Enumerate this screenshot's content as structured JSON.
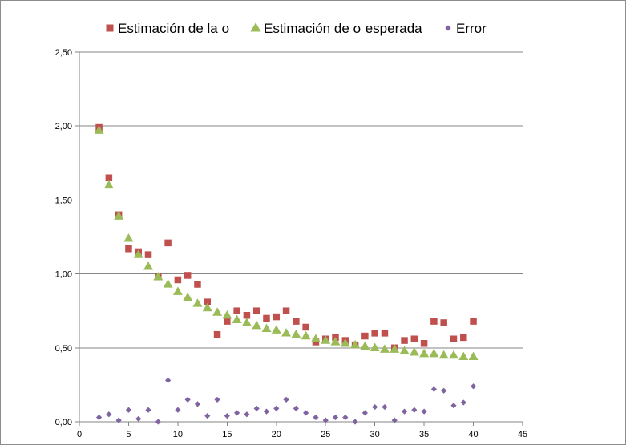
{
  "chart_data": {
    "type": "scatter",
    "title": "",
    "xlabel": "",
    "ylabel": "",
    "xlim": [
      0,
      45
    ],
    "ylim": [
      0,
      2.5
    ],
    "x_ticks": [
      0,
      5,
      10,
      15,
      20,
      25,
      30,
      35,
      40,
      45
    ],
    "y_ticks": [
      0,
      0.5,
      1.0,
      1.5,
      2.0,
      2.5
    ],
    "y_tick_labels": [
      "0,00",
      "0,50",
      "1,00",
      "1,50",
      "2,00",
      "2,50"
    ],
    "x_tick_labels": [
      "0",
      "5",
      "10",
      "15",
      "20",
      "25",
      "30",
      "35",
      "40",
      "45"
    ],
    "grid": "horizontal",
    "legend_position": "top",
    "x": [
      2,
      3,
      4,
      5,
      6,
      7,
      8,
      9,
      10,
      11,
      12,
      13,
      14,
      15,
      16,
      17,
      18,
      19,
      20,
      21,
      22,
      23,
      24,
      25,
      26,
      27,
      28,
      29,
      30,
      31,
      32,
      33,
      34,
      35,
      36,
      37,
      38,
      39,
      40
    ],
    "series": [
      {
        "name": "Estimación de la σ",
        "marker": "square",
        "color": "#c0504d",
        "values": [
          1.99,
          1.65,
          1.4,
          1.17,
          1.15,
          1.13,
          0.98,
          1.21,
          0.96,
          0.99,
          0.93,
          0.81,
          0.59,
          0.68,
          0.75,
          0.72,
          0.75,
          0.7,
          0.71,
          0.75,
          0.68,
          0.64,
          0.54,
          0.56,
          0.57,
          0.55,
          0.52,
          0.58,
          0.6,
          0.6,
          0.5,
          0.55,
          0.56,
          0.53,
          0.68,
          0.67,
          0.56,
          0.57,
          0.68
        ]
      },
      {
        "name": "Estimación de σ esperada",
        "marker": "triangle",
        "color": "#9bbb59",
        "values": [
          1.97,
          1.6,
          1.39,
          1.24,
          1.13,
          1.05,
          0.98,
          0.93,
          0.88,
          0.84,
          0.8,
          0.77,
          0.74,
          0.72,
          0.69,
          0.67,
          0.65,
          0.63,
          0.62,
          0.6,
          0.59,
          0.58,
          0.56,
          0.55,
          0.54,
          0.53,
          0.52,
          0.51,
          0.5,
          0.49,
          0.49,
          0.48,
          0.47,
          0.46,
          0.46,
          0.45,
          0.45,
          0.44,
          0.44
        ]
      },
      {
        "name": "Error",
        "marker": "diamond",
        "color": "#8064a2",
        "values": [
          0.03,
          0.05,
          0.01,
          0.08,
          0.02,
          0.08,
          0.0,
          0.28,
          0.08,
          0.15,
          0.12,
          0.04,
          0.15,
          0.04,
          0.06,
          0.05,
          0.09,
          0.07,
          0.09,
          0.15,
          0.09,
          0.06,
          0.03,
          0.01,
          0.03,
          0.03,
          0.0,
          0.06,
          0.1,
          0.1,
          0.01,
          0.07,
          0.08,
          0.07,
          0.22,
          0.21,
          0.11,
          0.13,
          0.24
        ]
      }
    ]
  }
}
